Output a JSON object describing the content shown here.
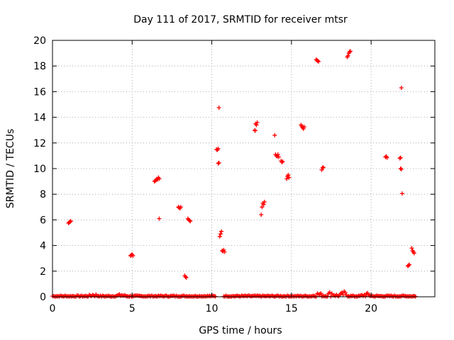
{
  "chart_data": {
    "type": "scatter",
    "title": "Day 111 of 2017, SRMTID for receiver mtsr",
    "xlabel": "GPS time / hours",
    "ylabel": "SRMTID / TECUs",
    "xlim": [
      0,
      24
    ],
    "ylim": [
      0,
      20
    ],
    "xticks": [
      0,
      5,
      10,
      15,
      20
    ],
    "yticks": [
      0,
      2,
      4,
      6,
      8,
      10,
      12,
      14,
      16,
      18,
      20
    ],
    "grid": true,
    "marker": "+",
    "color": "#ff0000",
    "series": [
      {
        "name": "SRMTID",
        "points": [
          [
            1.0,
            5.75
          ],
          [
            1.05,
            5.8
          ],
          [
            1.1,
            5.85
          ],
          [
            1.15,
            5.9
          ],
          [
            4.9,
            3.2
          ],
          [
            4.95,
            3.25
          ],
          [
            5.0,
            3.3
          ],
          [
            5.05,
            3.2
          ],
          [
            6.4,
            9.0
          ],
          [
            6.45,
            9.05
          ],
          [
            6.5,
            9.1
          ],
          [
            6.55,
            9.2
          ],
          [
            6.6,
            9.15
          ],
          [
            6.65,
            9.3
          ],
          [
            6.7,
            9.2
          ],
          [
            6.7,
            6.1
          ],
          [
            7.9,
            7.0
          ],
          [
            7.95,
            6.95
          ],
          [
            8.0,
            6.9
          ],
          [
            8.05,
            7.0
          ],
          [
            8.3,
            1.65
          ],
          [
            8.35,
            1.55
          ],
          [
            8.4,
            1.5
          ],
          [
            8.5,
            6.1
          ],
          [
            8.55,
            6.0
          ],
          [
            8.6,
            5.95
          ],
          [
            8.65,
            5.9
          ],
          [
            10.3,
            11.5
          ],
          [
            10.35,
            11.45
          ],
          [
            10.4,
            11.55
          ],
          [
            10.4,
            10.4
          ],
          [
            10.45,
            10.45
          ],
          [
            10.45,
            14.75
          ],
          [
            10.5,
            4.7
          ],
          [
            10.55,
            4.9
          ],
          [
            10.6,
            5.1
          ],
          [
            10.65,
            3.6
          ],
          [
            10.7,
            3.55
          ],
          [
            10.75,
            3.65
          ],
          [
            10.8,
            3.5
          ],
          [
            12.7,
            13.0
          ],
          [
            12.72,
            12.95
          ],
          [
            12.75,
            13.5
          ],
          [
            12.8,
            13.4
          ],
          [
            12.85,
            13.6
          ],
          [
            13.1,
            6.4
          ],
          [
            13.15,
            7.0
          ],
          [
            13.2,
            7.3
          ],
          [
            13.25,
            7.2
          ],
          [
            13.3,
            7.4
          ],
          [
            13.95,
            12.6
          ],
          [
            14.0,
            11.1
          ],
          [
            14.05,
            11.0
          ],
          [
            14.1,
            10.95
          ],
          [
            14.15,
            11.1
          ],
          [
            14.2,
            10.9
          ],
          [
            14.35,
            10.6
          ],
          [
            14.4,
            10.5
          ],
          [
            14.45,
            10.55
          ],
          [
            14.7,
            9.2
          ],
          [
            14.75,
            9.4
          ],
          [
            14.8,
            9.5
          ],
          [
            14.85,
            9.3
          ],
          [
            15.6,
            13.4
          ],
          [
            15.65,
            13.3
          ],
          [
            15.7,
            13.2
          ],
          [
            15.75,
            13.1
          ],
          [
            15.8,
            13.25
          ],
          [
            16.55,
            18.5
          ],
          [
            16.6,
            18.45
          ],
          [
            16.65,
            18.4
          ],
          [
            16.7,
            18.35
          ],
          [
            16.9,
            9.9
          ],
          [
            16.95,
            10.05
          ],
          [
            17.0,
            10.1
          ],
          [
            18.5,
            18.7
          ],
          [
            18.55,
            18.8
          ],
          [
            18.6,
            19.0
          ],
          [
            18.65,
            19.1
          ],
          [
            18.7,
            19.15
          ],
          [
            20.9,
            10.9
          ],
          [
            20.95,
            10.95
          ],
          [
            21.0,
            10.85
          ],
          [
            21.8,
            10.8
          ],
          [
            21.85,
            10.85
          ],
          [
            21.85,
            10.0
          ],
          [
            21.9,
            9.95
          ],
          [
            21.9,
            16.3
          ],
          [
            21.95,
            8.05
          ],
          [
            22.3,
            2.4
          ],
          [
            22.35,
            2.45
          ],
          [
            22.4,
            2.5
          ],
          [
            22.55,
            3.8
          ],
          [
            22.6,
            3.6
          ],
          [
            22.65,
            3.5
          ],
          [
            22.7,
            3.4
          ]
        ],
        "baseline": {
          "description_ranges": [
            [
              0.0,
              10.25
            ],
            [
              10.75,
              22.8
            ]
          ],
          "typical": 0.1,
          "bumps": [
            [
              2.6,
              0.25
            ],
            [
              4.3,
              0.2
            ],
            [
              16.7,
              0.35
            ],
            [
              17.5,
              0.45
            ],
            [
              18.3,
              0.4
            ],
            [
              19.7,
              0.3
            ]
          ]
        }
      }
    ]
  }
}
